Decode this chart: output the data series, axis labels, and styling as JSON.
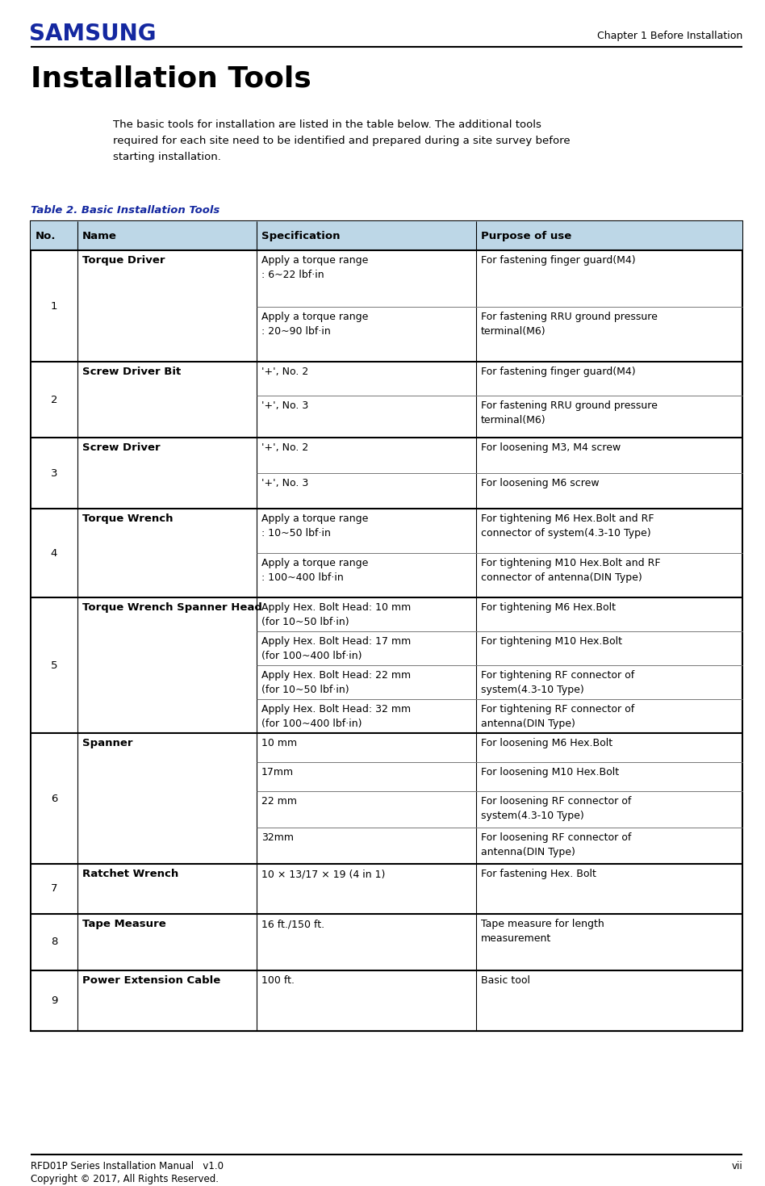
{
  "title": "Installation Tools",
  "header_right": "Chapter 1 Before Installation",
  "samsung_color": "#1428A0",
  "intro_text": "The basic tools for installation are listed in the table below. The additional tools\nrequired for each site need to be identified and prepared during a site survey before\nstarting installation.",
  "table_title": "Table 2. Basic Installation Tools",
  "table_title_color": "#1428A0",
  "header_bg": "#bdd7e7",
  "footer_left": "RFD01P Series Installation Manual   v1.0",
  "footer_right": "vii",
  "footer_bottom": "Copyright © 2017, All Rights Reserved.",
  "col_headers": [
    "No.",
    "Name",
    "Specification",
    "Purpose of use"
  ],
  "rows": [
    {
      "no": "1",
      "name": "Torque Driver",
      "sub_rows": [
        {
          "spec": "Apply a torque range\n: 6~22 lbf·in",
          "purpose": "For fastening finger guard(M4)"
        },
        {
          "spec": "Apply a torque range\n: 20~90 lbf·in",
          "purpose": "For fastening RRU ground pressure\nterminal(M6)"
        }
      ]
    },
    {
      "no": "2",
      "name": "Screw Driver Bit",
      "sub_rows": [
        {
          "spec": "'+', No. 2",
          "purpose": "For fastening finger guard(M4)"
        },
        {
          "spec": "'+', No. 3",
          "purpose": "For fastening RRU ground pressure\nterminal(M6)"
        }
      ]
    },
    {
      "no": "3",
      "name": "Screw Driver",
      "sub_rows": [
        {
          "spec": "'+', No. 2",
          "purpose": "For loosening M3, M4 screw"
        },
        {
          "spec": "'+', No. 3",
          "purpose": "For loosening M6 screw"
        }
      ]
    },
    {
      "no": "4",
      "name": "Torque Wrench",
      "sub_rows": [
        {
          "spec": "Apply a torque range\n: 10~50 lbf·in",
          "purpose": "For tightening M6 Hex.Bolt and RF\nconnector of system(4.3-10 Type)"
        },
        {
          "spec": "Apply a torque range\n: 100~400 lbf·in",
          "purpose": "For tightening M10 Hex.Bolt and RF\nconnector of antenna(DIN Type)"
        }
      ]
    },
    {
      "no": "5",
      "name": "Torque Wrench Spanner Head",
      "sub_rows": [
        {
          "spec": "Apply Hex. Bolt Head: 10 mm\n(for 10~50 lbf·in)",
          "purpose": "For tightening M6 Hex.Bolt"
        },
        {
          "spec": "Apply Hex. Bolt Head: 17 mm\n(for 100~400 lbf·in)",
          "purpose": "For tightening M10 Hex.Bolt"
        },
        {
          "spec": "Apply Hex. Bolt Head: 22 mm\n(for 10~50 lbf·in)",
          "purpose": "For tightening RF connector of\nsystem(4.3-10 Type)"
        },
        {
          "spec": "Apply Hex. Bolt Head: 32 mm\n(for 100~400 lbf·in)",
          "purpose": "For tightening RF connector of\nantenna(DIN Type)"
        }
      ]
    },
    {
      "no": "6",
      "name": "Spanner",
      "sub_rows": [
        {
          "spec": "10 mm",
          "purpose": "For loosening M6 Hex.Bolt"
        },
        {
          "spec": "17mm",
          "purpose": "For loosening M10 Hex.Bolt"
        },
        {
          "spec": "22 mm",
          "purpose": "For loosening RF connector of\nsystem(4.3-10 Type)"
        },
        {
          "spec": "32mm",
          "purpose": "For loosening RF connector of\nantenna(DIN Type)"
        }
      ]
    },
    {
      "no": "7",
      "name": "Ratchet Wrench",
      "sub_rows": [
        {
          "spec": "10 × 13/17 × 19 (4 in 1)",
          "purpose": "For fastening Hex. Bolt"
        }
      ]
    },
    {
      "no": "8",
      "name": "Tape Measure",
      "sub_rows": [
        {
          "spec": "16 ft./150 ft.",
          "purpose": "Tape measure for length\nmeasurement"
        }
      ]
    },
    {
      "no": "9",
      "name": "Power Extension Cable",
      "sub_rows": [
        {
          "spec": "100 ft.",
          "purpose": "Basic tool"
        }
      ]
    }
  ]
}
